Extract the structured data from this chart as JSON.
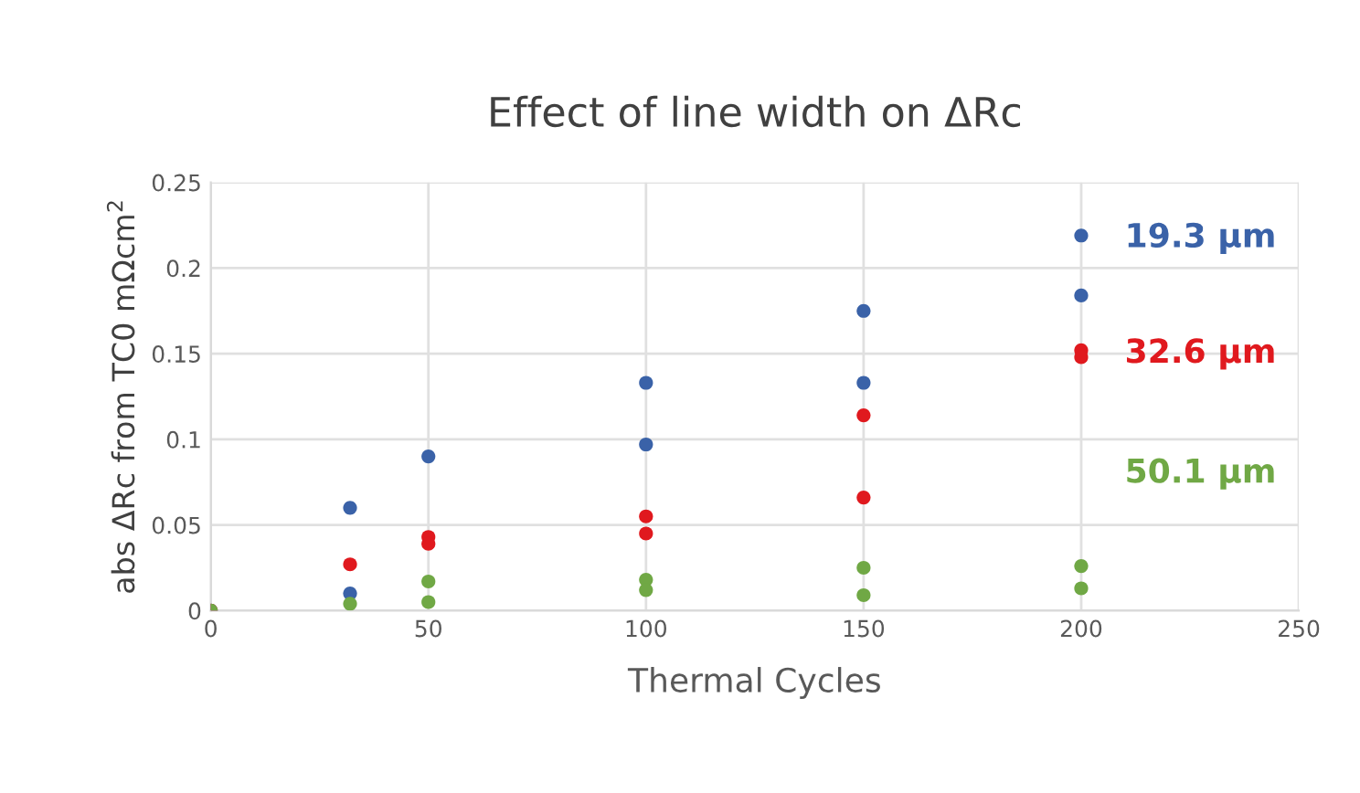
{
  "chart_data": {
    "type": "scatter",
    "title": "Effect of line width on ΔRc",
    "xlabel": "Thermal Cycles",
    "ylabel": "abs ΔRc from TC0 mΩcm$^{2}$",
    "xlim": [
      0,
      250
    ],
    "xticks": [
      0,
      50,
      100,
      150,
      200,
      250
    ],
    "ylim": [
      0,
      0.25
    ],
    "yticks": [
      0,
      0.05,
      0.1,
      0.15,
      0.2,
      0.25
    ],
    "grid": true,
    "marker": "circle",
    "series": [
      {
        "name": "19.3 µm",
        "color": "#3a62a8",
        "x": [
          0,
          32,
          32,
          50,
          100,
          100,
          150,
          150,
          200,
          200
        ],
        "values": [
          0,
          0.06,
          0.01,
          0.09,
          0.133,
          0.097,
          0.175,
          0.133,
          0.219,
          0.184
        ]
      },
      {
        "name": "32.6 µm",
        "color": "#e0191e",
        "x": [
          0,
          32,
          50,
          50,
          100,
          100,
          150,
          150,
          200,
          200
        ],
        "values": [
          0,
          0.027,
          0.043,
          0.039,
          0.055,
          0.045,
          0.114,
          0.066,
          0.152,
          0.148
        ]
      },
      {
        "name": "50.1 µm",
        "color": "#70a845",
        "x": [
          0,
          32,
          50,
          50,
          100,
          100,
          150,
          150,
          200,
          200
        ],
        "values": [
          0,
          0.004,
          0.017,
          0.005,
          0.018,
          0.012,
          0.025,
          0.009,
          0.026,
          0.013
        ]
      }
    ]
  }
}
